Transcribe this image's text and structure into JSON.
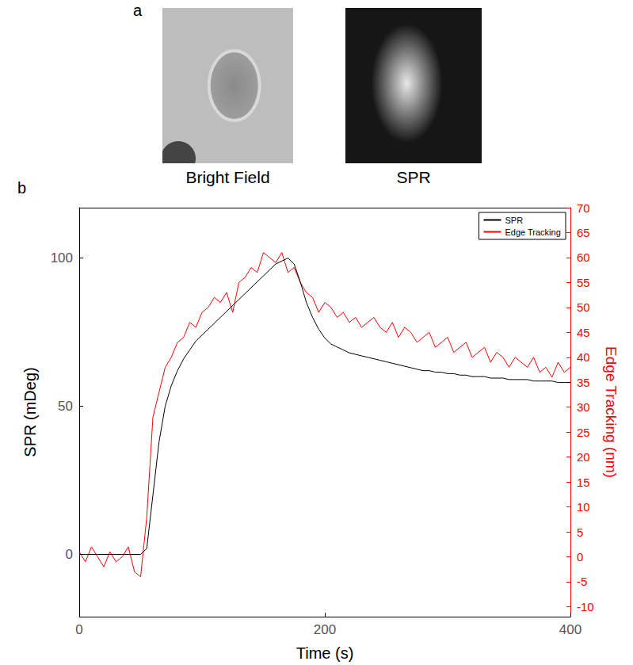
{
  "panels": {
    "a": {
      "letter": "a",
      "images": [
        {
          "caption": "Bright Field"
        },
        {
          "caption": "SPR"
        }
      ]
    },
    "b": {
      "letter": "b"
    }
  },
  "chart_data": {
    "type": "line",
    "xlabel": "Time (s)",
    "ylabel": "SPR (mDeg)",
    "y2label": "Edge Tracking (nm)",
    "x": [
      0,
      5,
      10,
      15,
      20,
      25,
      30,
      35,
      40,
      45,
      50,
      55,
      60,
      65,
      70,
      75,
      80,
      85,
      90,
      95,
      100,
      105,
      110,
      115,
      120,
      125,
      130,
      135,
      140,
      145,
      150,
      155,
      160,
      165,
      170,
      175,
      180,
      185,
      190,
      195,
      200,
      205,
      210,
      215,
      220,
      225,
      230,
      235,
      240,
      245,
      250,
      255,
      260,
      265,
      270,
      275,
      280,
      285,
      290,
      295,
      300,
      305,
      310,
      315,
      320,
      325,
      330,
      335,
      340,
      345,
      350,
      355,
      360,
      365,
      370,
      375,
      380,
      385,
      390,
      395,
      400
    ],
    "xlim": [
      0,
      400
    ],
    "xticks": [
      0,
      200,
      400
    ],
    "ylim": [
      -21,
      117
    ],
    "yticks": [
      0,
      50,
      100
    ],
    "y2lim": [
      -12,
      70
    ],
    "y2ticks": [
      -10,
      -5,
      0,
      5,
      10,
      15,
      20,
      25,
      30,
      35,
      40,
      45,
      50,
      55,
      60,
      65,
      70
    ],
    "grid": false,
    "legend": "top-right",
    "series": [
      {
        "name": "SPR",
        "color": "#000000",
        "axis": "y",
        "values": [
          0,
          0,
          0,
          0,
          0,
          0,
          0,
          0,
          0,
          0,
          0,
          2,
          20,
          38,
          50,
          57,
          62,
          66,
          69,
          72,
          74,
          76,
          78,
          80,
          82,
          84,
          86,
          88,
          90,
          92,
          94,
          96,
          98,
          99,
          100,
          98,
          92,
          85,
          80,
          76,
          73,
          71,
          70,
          69,
          68,
          67.5,
          67,
          66.5,
          66,
          65.5,
          65,
          64.5,
          64,
          63.5,
          63,
          62.5,
          62,
          62,
          61.5,
          61.5,
          61,
          61,
          60.5,
          60.5,
          60,
          60,
          60,
          59.5,
          59.5,
          59.5,
          59,
          59,
          59,
          59,
          58.5,
          58.5,
          58.5,
          58.5,
          58,
          58,
          58
        ]
      },
      {
        "name": "Edge Tracking",
        "color": "#ff0000",
        "axis": "y2",
        "values": [
          1,
          -1,
          2,
          0,
          -2,
          1,
          -1,
          0,
          2,
          -3,
          -4,
          8,
          28,
          33,
          38,
          40,
          43,
          44,
          47,
          46,
          49,
          50,
          52,
          51,
          53,
          49,
          55,
          56,
          58,
          57,
          61,
          60,
          59,
          61,
          57,
          58,
          55,
          53,
          52,
          49,
          51,
          50,
          48,
          49,
          47,
          48,
          46,
          47,
          48,
          46,
          45,
          47,
          44,
          46,
          45,
          43,
          44,
          45,
          42,
          43,
          44,
          41,
          42,
          43,
          40,
          41,
          42,
          39,
          41,
          40,
          38,
          40,
          39,
          38,
          40,
          37,
          38,
          36,
          39,
          37,
          38
        ]
      }
    ]
  }
}
